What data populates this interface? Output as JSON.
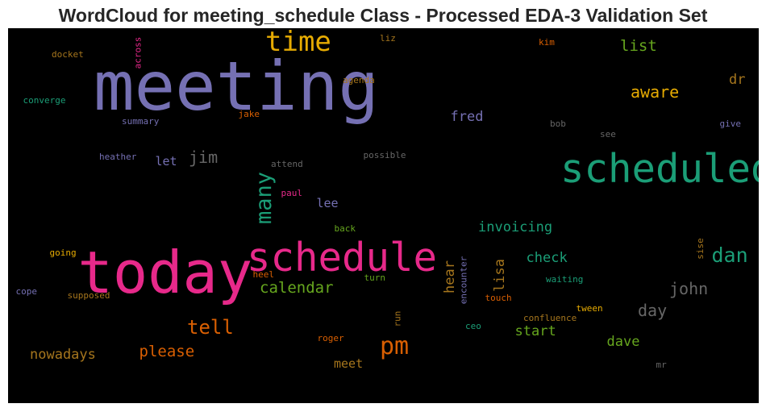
{
  "chart_data": {
    "type": "wordcloud",
    "title": "WordCloud for meeting_schedule Class - Processed EDA-3 Validation Set",
    "background": "#000000",
    "words": [
      {
        "text": "meeting",
        "weight": 1.0,
        "color": "#7570b3",
        "orientation": "horizontal"
      },
      {
        "text": "today",
        "weight": 0.86,
        "color": "#e7298a",
        "orientation": "horizontal"
      },
      {
        "text": "schedule",
        "weight": 0.58,
        "color": "#e7298a",
        "orientation": "horizontal"
      },
      {
        "text": "scheduled",
        "weight": 0.58,
        "color": "#1b9e77",
        "orientation": "horizontal"
      },
      {
        "text": "time",
        "weight": 0.41,
        "color": "#e6ab02",
        "orientation": "horizontal"
      },
      {
        "text": "pm",
        "weight": 0.36,
        "color": "#d95f02",
        "orientation": "horizontal"
      },
      {
        "text": "many",
        "weight": 0.32,
        "color": "#1b9e77",
        "orientation": "vertical"
      },
      {
        "text": "dan",
        "weight": 0.3,
        "color": "#1b9e77",
        "orientation": "horizontal"
      },
      {
        "text": "tell",
        "weight": 0.28,
        "color": "#d95f02",
        "orientation": "horizontal"
      },
      {
        "text": "john",
        "weight": 0.24,
        "color": "#666666",
        "orientation": "horizontal"
      },
      {
        "text": "aware",
        "weight": 0.24,
        "color": "#e6ab02",
        "orientation": "horizontal"
      },
      {
        "text": "jim",
        "weight": 0.24,
        "color": "#666666",
        "orientation": "horizontal"
      },
      {
        "text": "day",
        "weight": 0.24,
        "color": "#666666",
        "orientation": "horizontal"
      },
      {
        "text": "list",
        "weight": 0.23,
        "color": "#66a61e",
        "orientation": "horizontal"
      },
      {
        "text": "calendar",
        "weight": 0.23,
        "color": "#66a61e",
        "orientation": "horizontal"
      },
      {
        "text": "please",
        "weight": 0.23,
        "color": "#d95f02",
        "orientation": "horizontal"
      },
      {
        "text": "dr",
        "weight": 0.2,
        "color": "#a6761d",
        "orientation": "horizontal"
      },
      {
        "text": "nowadays",
        "weight": 0.2,
        "color": "#a6761d",
        "orientation": "horizontal"
      },
      {
        "text": "fred",
        "weight": 0.2,
        "color": "#7570b3",
        "orientation": "horizontal"
      },
      {
        "text": "invoicing",
        "weight": 0.2,
        "color": "#1b9e77",
        "orientation": "horizontal"
      },
      {
        "text": "check",
        "weight": 0.2,
        "color": "#1b9e77",
        "orientation": "horizontal"
      },
      {
        "text": "start",
        "weight": 0.2,
        "color": "#66a61e",
        "orientation": "horizontal"
      },
      {
        "text": "dave",
        "weight": 0.2,
        "color": "#66a61e",
        "orientation": "horizontal"
      },
      {
        "text": "hear",
        "weight": 0.2,
        "color": "#a6761d",
        "orientation": "vertical"
      },
      {
        "text": "lisa",
        "weight": 0.2,
        "color": "#a6761d",
        "orientation": "vertical"
      },
      {
        "text": "meet",
        "weight": 0.18,
        "color": "#a6761d",
        "orientation": "horizontal"
      },
      {
        "text": "let",
        "weight": 0.18,
        "color": "#7570b3",
        "orientation": "horizontal"
      },
      {
        "text": "lee",
        "weight": 0.18,
        "color": "#7570b3",
        "orientation": "horizontal"
      },
      {
        "text": "docket",
        "weight": 0.13,
        "color": "#a6761d",
        "orientation": "horizontal"
      },
      {
        "text": "across",
        "weight": 0.13,
        "color": "#e7298a",
        "orientation": "vertical"
      },
      {
        "text": "liz",
        "weight": 0.13,
        "color": "#a6761d",
        "orientation": "horizontal"
      },
      {
        "text": "kim",
        "weight": 0.13,
        "color": "#d95f02",
        "orientation": "horizontal"
      },
      {
        "text": "agenda",
        "weight": 0.13,
        "color": "#a6761d",
        "orientation": "horizontal"
      },
      {
        "text": "converge",
        "weight": 0.13,
        "color": "#1b9e77",
        "orientation": "horizontal"
      },
      {
        "text": "jake",
        "weight": 0.13,
        "color": "#d95f02",
        "orientation": "horizontal"
      },
      {
        "text": "summary",
        "weight": 0.13,
        "color": "#7570b3",
        "orientation": "horizontal"
      },
      {
        "text": "bob",
        "weight": 0.13,
        "color": "#666666",
        "orientation": "horizontal"
      },
      {
        "text": "see",
        "weight": 0.13,
        "color": "#666666",
        "orientation": "horizontal"
      },
      {
        "text": "give",
        "weight": 0.13,
        "color": "#7570b3",
        "orientation": "horizontal"
      },
      {
        "text": "heather",
        "weight": 0.13,
        "color": "#7570b3",
        "orientation": "horizontal"
      },
      {
        "text": "attend",
        "weight": 0.13,
        "color": "#666666",
        "orientation": "horizontal"
      },
      {
        "text": "possible",
        "weight": 0.13,
        "color": "#666666",
        "orientation": "horizontal"
      },
      {
        "text": "paul",
        "weight": 0.13,
        "color": "#e7298a",
        "orientation": "horizontal"
      },
      {
        "text": "back",
        "weight": 0.13,
        "color": "#66a61e",
        "orientation": "horizontal"
      },
      {
        "text": "going",
        "weight": 0.13,
        "color": "#e6ab02",
        "orientation": "horizontal"
      },
      {
        "text": "encounter",
        "weight": 0.13,
        "color": "#7570b3",
        "orientation": "vertical"
      },
      {
        "text": "sise",
        "weight": 0.13,
        "color": "#a6761d",
        "orientation": "vertical"
      },
      {
        "text": "heel",
        "weight": 0.13,
        "color": "#d95f02",
        "orientation": "horizontal"
      },
      {
        "text": "turn",
        "weight": 0.13,
        "color": "#66a61e",
        "orientation": "horizontal"
      },
      {
        "text": "waiting",
        "weight": 0.13,
        "color": "#1b9e77",
        "orientation": "horizontal"
      },
      {
        "text": "cope",
        "weight": 0.13,
        "color": "#7570b3",
        "orientation": "horizontal"
      },
      {
        "text": "supposed",
        "weight": 0.13,
        "color": "#a6761d",
        "orientation": "horizontal"
      },
      {
        "text": "touch",
        "weight": 0.13,
        "color": "#d95f02",
        "orientation": "horizontal"
      },
      {
        "text": "tween",
        "weight": 0.13,
        "color": "#e6ab02",
        "orientation": "horizontal"
      },
      {
        "text": "run",
        "weight": 0.13,
        "color": "#a6761d",
        "orientation": "vertical"
      },
      {
        "text": "confluence",
        "weight": 0.13,
        "color": "#a6761d",
        "orientation": "horizontal"
      },
      {
        "text": "ceo",
        "weight": 0.13,
        "color": "#1b9e77",
        "orientation": "horizontal"
      },
      {
        "text": "roger",
        "weight": 0.13,
        "color": "#d95f02",
        "orientation": "horizontal"
      },
      {
        "text": "mr",
        "weight": 0.13,
        "color": "#666666",
        "orientation": "horizontal"
      }
    ]
  }
}
